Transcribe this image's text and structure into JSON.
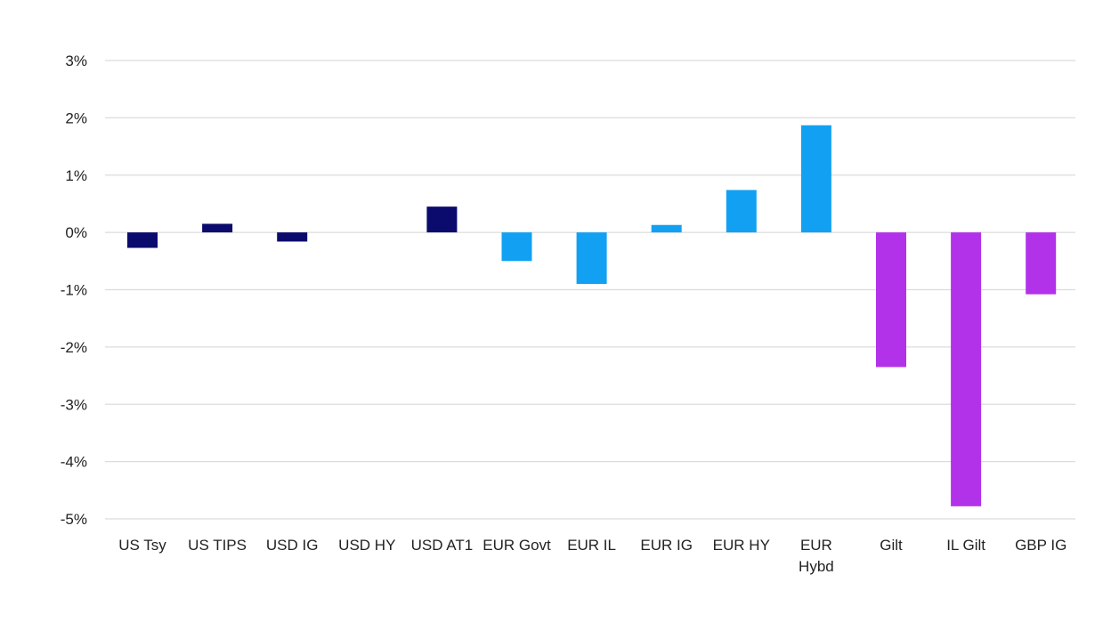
{
  "chart_data": {
    "type": "bar",
    "title": "",
    "xlabel": "",
    "ylabel": "",
    "ylim": [
      -5,
      3
    ],
    "y_ticks": [
      3,
      2,
      1,
      0,
      -1,
      -2,
      -3,
      -4,
      -5
    ],
    "y_tick_labels": [
      "3%",
      "2%",
      "1%",
      "0%",
      "-1%",
      "-2%",
      "-3%",
      "-4%",
      "-5%"
    ],
    "grid": true,
    "legend": "none",
    "categories": [
      [
        "US Tsy"
      ],
      [
        "US TIPS"
      ],
      [
        "USD IG"
      ],
      [
        "USD HY"
      ],
      [
        "USD AT1"
      ],
      [
        "EUR Govt"
      ],
      [
        "EUR IL"
      ],
      [
        "EUR IG"
      ],
      [
        "EUR HY"
      ],
      [
        "EUR",
        "Hybd"
      ],
      [
        "Gilt"
      ],
      [
        "IL Gilt"
      ],
      [
        "GBP IG"
      ]
    ],
    "values": [
      -0.27,
      0.15,
      -0.16,
      0.0,
      0.45,
      -0.5,
      -0.9,
      0.13,
      0.74,
      1.87,
      -2.35,
      -4.78,
      -1.08
    ],
    "bar_colors": [
      "#0b0b6e",
      "#0b0b6e",
      "#0b0b6e",
      "#0b0b6e",
      "#0b0b6e",
      "#12a1f2",
      "#12a1f2",
      "#12a1f2",
      "#12a1f2",
      "#12a1f2",
      "#b232ea",
      "#b232ea",
      "#b232ea"
    ]
  },
  "colors": {
    "usd": "#0b0b6e",
    "eur": "#12a1f2",
    "gbp": "#b232ea",
    "grid": "#dcdcdc",
    "text": "#222222"
  }
}
